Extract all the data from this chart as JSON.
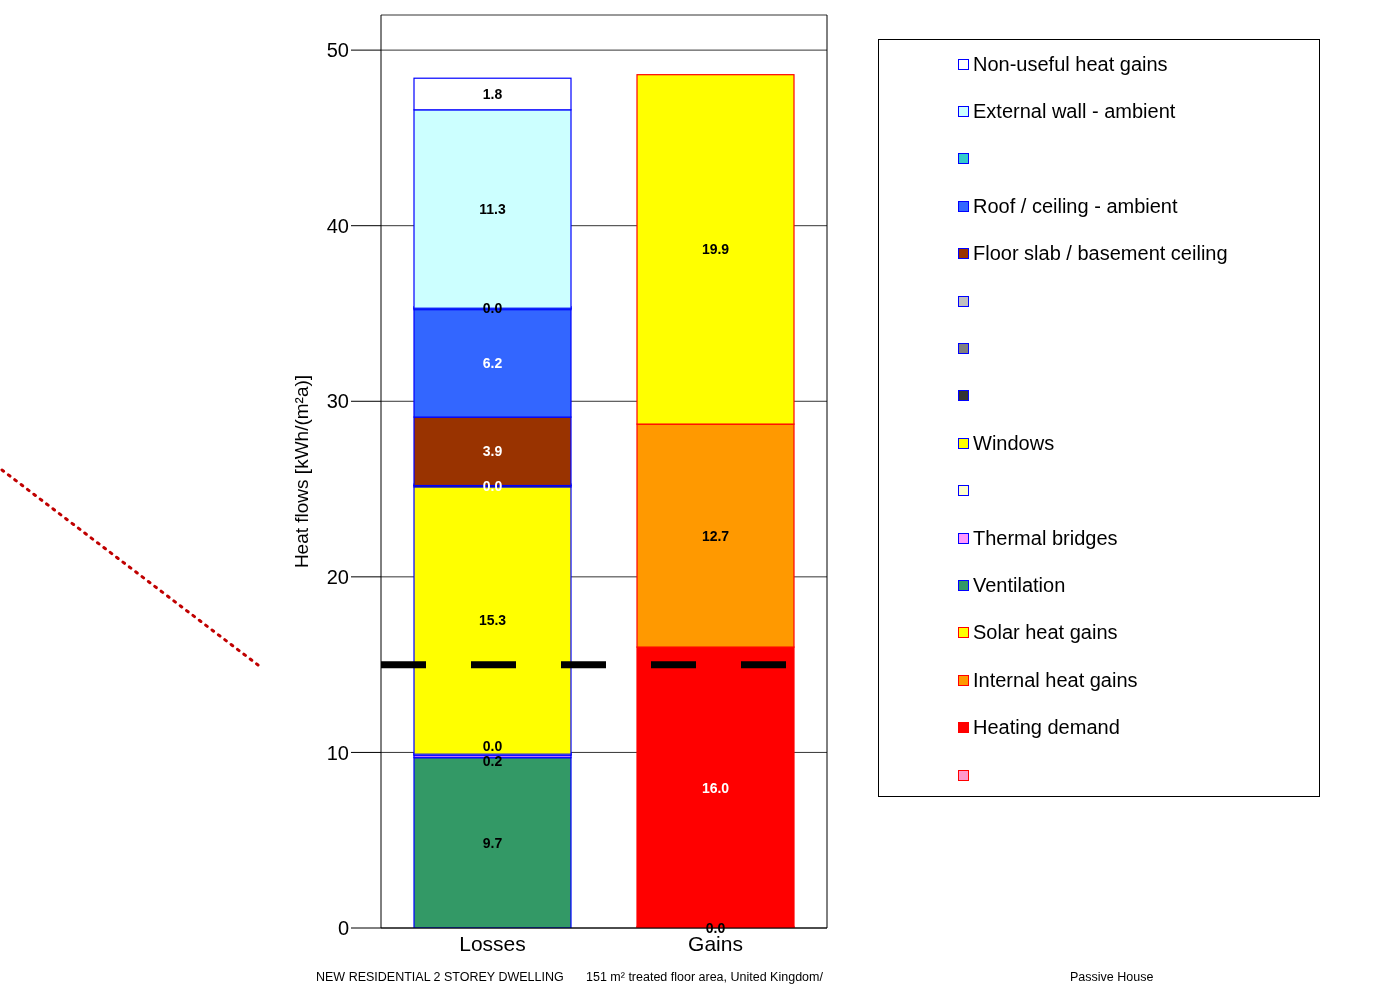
{
  "chart_data": {
    "type": "bar",
    "stacked": true,
    "ylabel": "Heat flows [kWh/(m²a)]",
    "categories": [
      "Losses",
      "Gains"
    ],
    "ylim": [
      0,
      52
    ],
    "yticks": [
      0,
      10,
      20,
      30,
      40,
      50
    ],
    "grid": "y",
    "legend": "right",
    "series": [
      {
        "color": "#ff99cc",
        "values": [
          null,
          0.0
        ],
        "value_labels": [
          null,
          "0.0"
        ]
      },
      {
        "name": "Heating demand",
        "color": "#ff0000",
        "values": [
          null,
          16.0
        ],
        "value_labels": [
          null,
          "16.0"
        ]
      },
      {
        "name": "Internal heat gains",
        "color": "#ff9900",
        "values": [
          null,
          12.7
        ],
        "value_labels": [
          null,
          "12.7"
        ]
      },
      {
        "name": "Solar heat gains",
        "color": "#ffff00",
        "values": [
          null,
          19.9
        ],
        "value_labels": [
          null,
          "19.9"
        ]
      },
      {
        "name": "Ventilation",
        "color": "#339966",
        "values": [
          9.7,
          null
        ],
        "value_labels": [
          "9.7",
          null
        ]
      },
      {
        "name": "Thermal bridges",
        "color": "#ff99ff",
        "values": [
          0.2,
          null
        ],
        "value_labels": [
          "0.2",
          null
        ]
      },
      {
        "color": "#ffffcc",
        "values": [
          0.0,
          null
        ],
        "value_labels": [
          "0.0",
          null
        ]
      },
      {
        "name": "Windows",
        "color": "#ffff00",
        "values": [
          15.3,
          null
        ],
        "value_labels": [
          "15.3",
          null
        ]
      },
      {
        "color": "#333333",
        "values": [
          0.0,
          null
        ],
        "value_labels": [
          "0.0",
          null
        ]
      },
      {
        "color": "#808080",
        "values": [
          null,
          null
        ]
      },
      {
        "color": "#c0c0c0",
        "values": [
          null,
          null
        ]
      },
      {
        "name": "Floor slab / basement ceiling",
        "color": "#993300",
        "values": [
          3.9,
          null
        ],
        "value_labels": [
          "3.9",
          null
        ]
      },
      {
        "name": "Roof / ceiling - ambient",
        "color": "#3366ff",
        "values": [
          6.2,
          null
        ],
        "value_labels": [
          "6.2",
          null
        ]
      },
      {
        "color": "#33cccc",
        "values": [
          0.0,
          null
        ],
        "value_labels": [
          "0.0",
          null
        ]
      },
      {
        "name": "External wall - ambient",
        "color": "#ccffff",
        "values": [
          11.3,
          null
        ],
        "value_labels": [
          "11.3",
          null
        ]
      },
      {
        "name": "Non-useful heat gains",
        "color": "#ffffff",
        "values": [
          1.8,
          null
        ],
        "value_labels": [
          "1.8",
          null
        ]
      }
    ],
    "ref_lines": [
      {
        "axis": "y",
        "value": 15,
        "color": "#000000",
        "line_style": "dashed"
      }
    ],
    "annotations": [
      "NEW RESIDENTIAL 2 STOREY DWELLING",
      "151 m² treated floor area, United Kingdom/",
      "Passive House"
    ]
  }
}
